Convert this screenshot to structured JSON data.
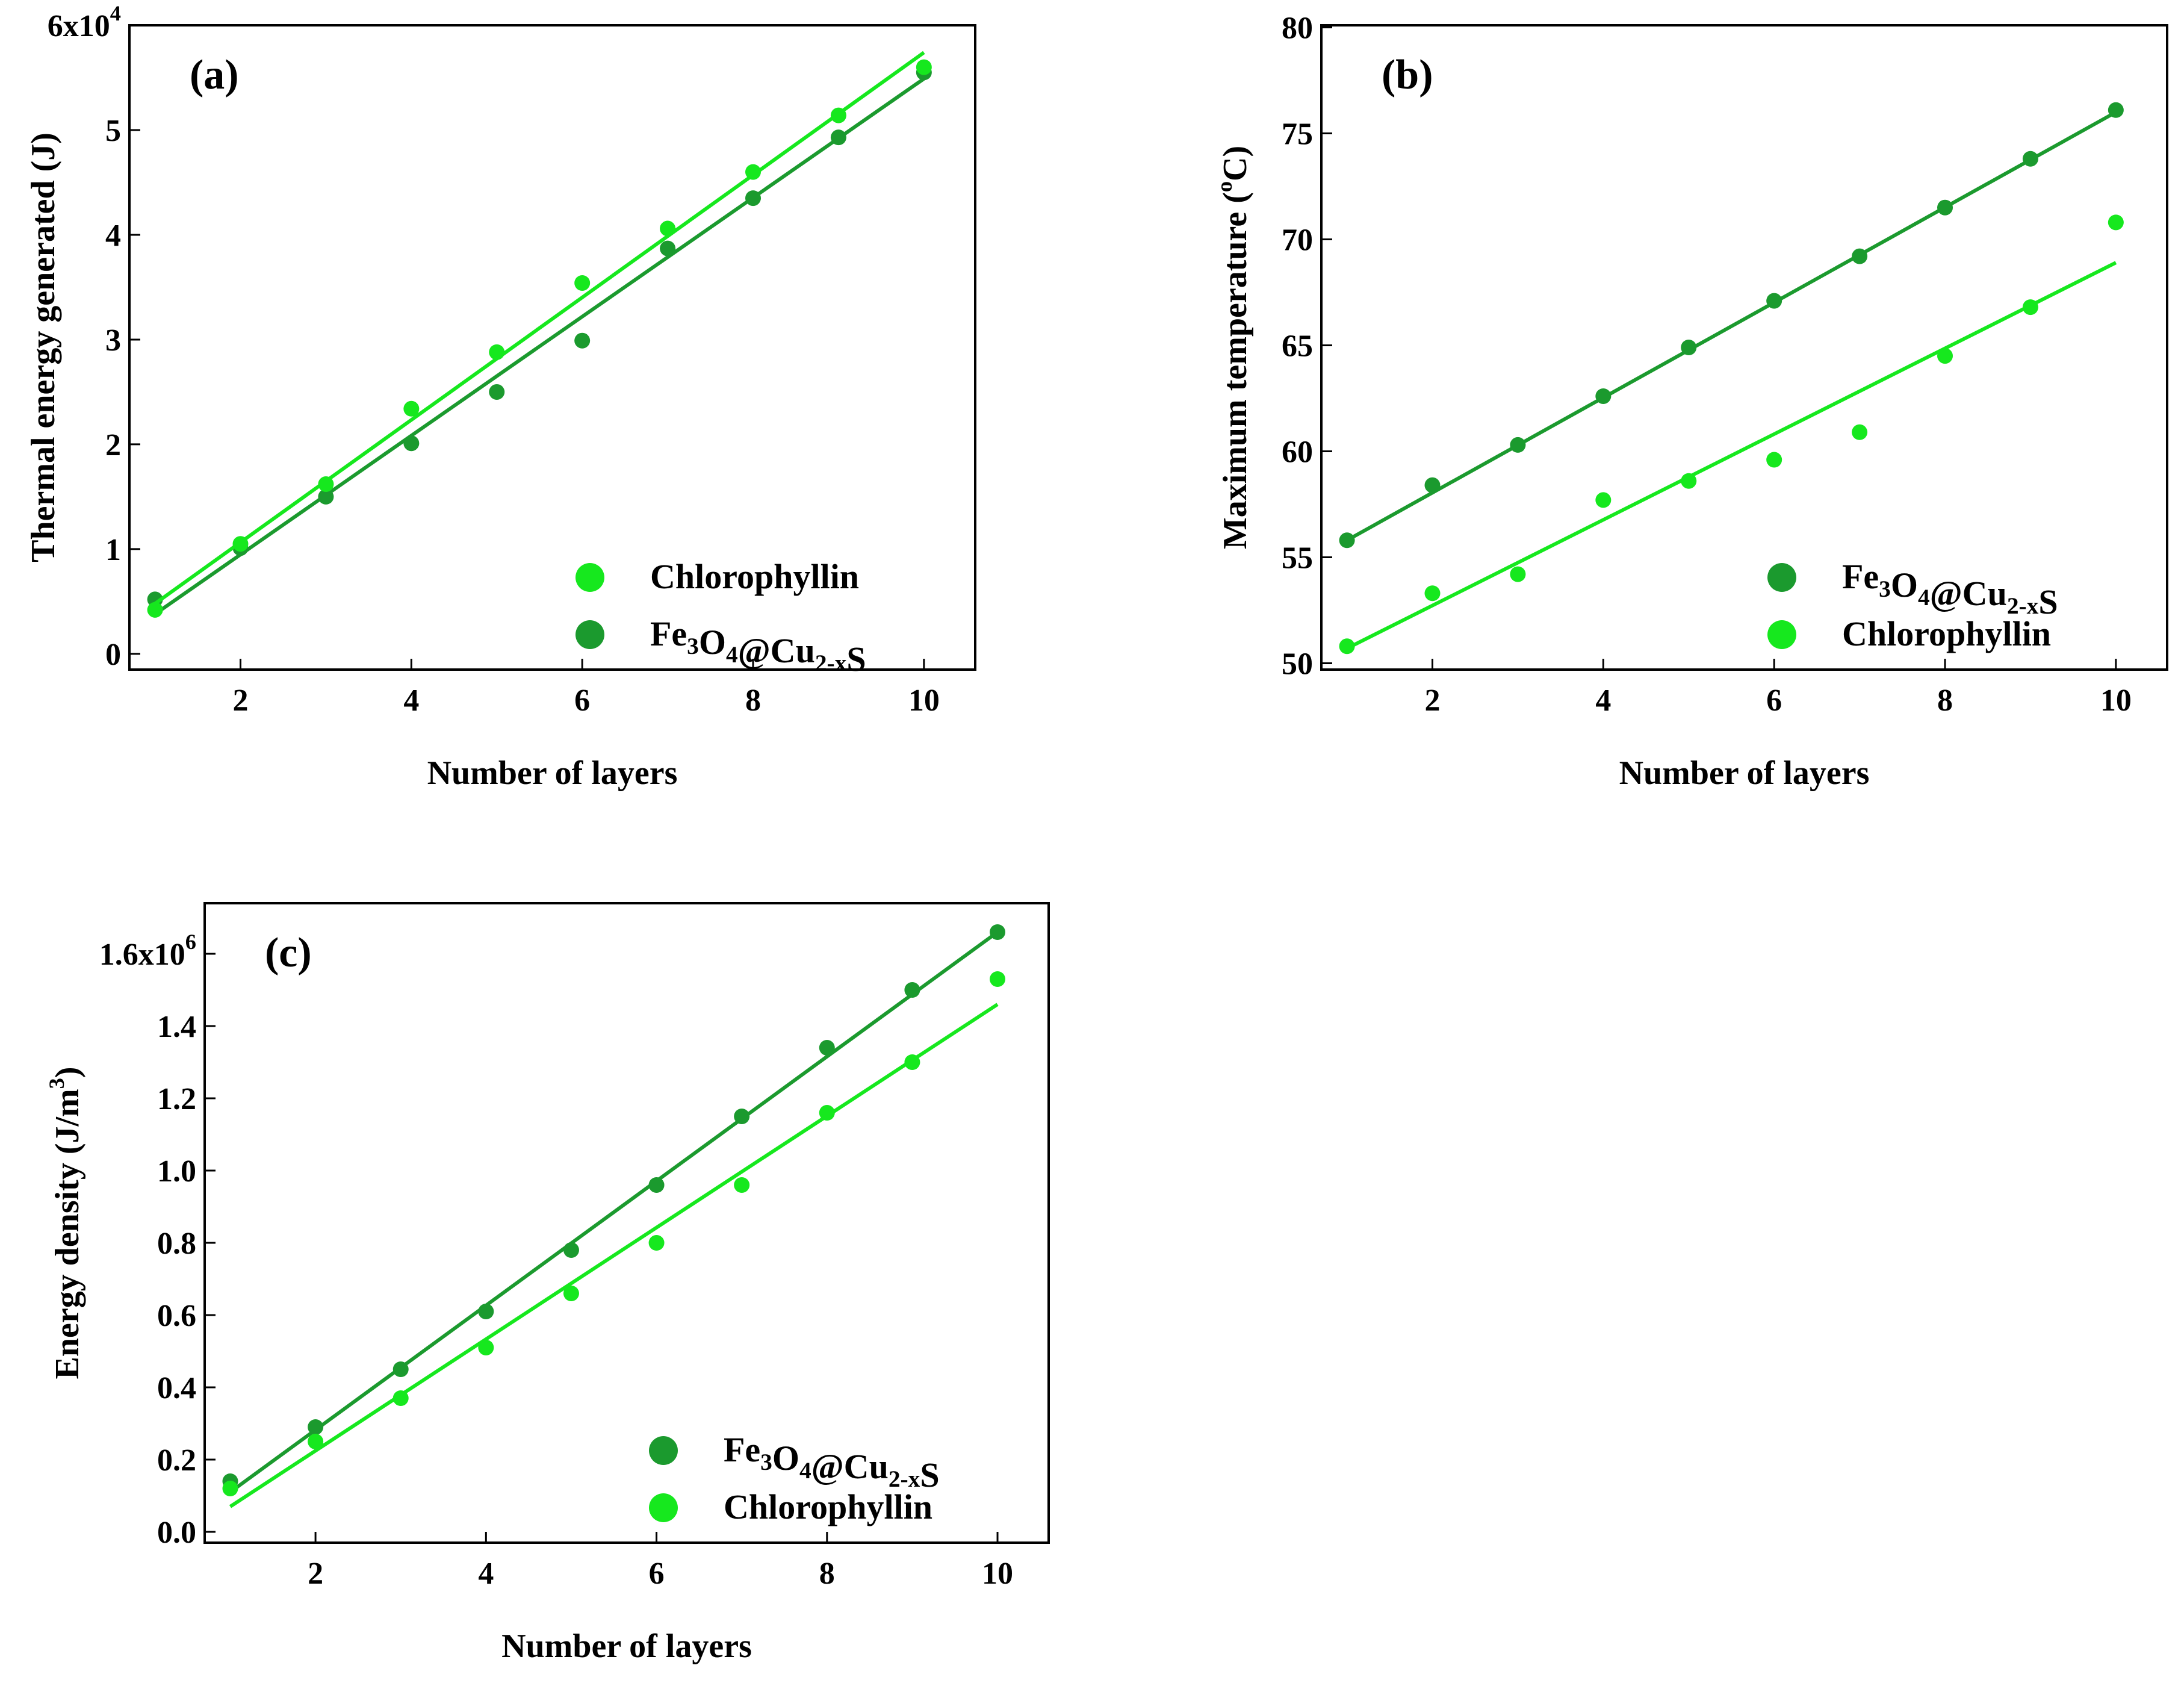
{
  "colors": {
    "dark_green": "#1b9a2e",
    "light_green": "#16e81e",
    "axis": "#000000",
    "background": "#ffffff"
  },
  "chart_data": [
    {
      "id": "a",
      "type": "scatter",
      "panel_label": "(a)",
      "xlabel": "Number of layers",
      "ylabel": "Thermal energy generated (J)",
      "y_multiplier": {
        "base": "6x10",
        "exponent": "4"
      },
      "xlim": [
        0.7,
        10.6
      ],
      "ylim": [
        -0.15,
        6.0
      ],
      "xticks": [
        {
          "value": 2,
          "label": "2"
        },
        {
          "value": 4,
          "label": "4"
        },
        {
          "value": 6,
          "label": "6"
        },
        {
          "value": 8,
          "label": "8"
        },
        {
          "value": 10,
          "label": "10"
        }
      ],
      "yticks": [
        {
          "value": 0,
          "label": "0"
        },
        {
          "value": 1,
          "label": "1"
        },
        {
          "value": 2,
          "label": "2"
        },
        {
          "value": 3,
          "label": "3"
        },
        {
          "value": 4,
          "label": "4"
        },
        {
          "value": 5,
          "label": "5"
        }
      ],
      "legend": {
        "position": "bottom-right",
        "entries": [
          {
            "series": "Chlorophyllin",
            "label": "Chlorophyllin"
          },
          {
            "series": "Fe3O4@Cu2-xS",
            "label": "Fe3O4@Cu2-xS",
            "rich": [
              {
                "t": "Fe"
              },
              {
                "t": "3",
                "sub": true
              },
              {
                "t": "O"
              },
              {
                "t": "4",
                "sub": true
              },
              {
                "t": "@Cu"
              },
              {
                "t": "2-x",
                "sub": true
              },
              {
                "t": "S"
              }
            ]
          }
        ]
      },
      "series": [
        {
          "name": "Fe3O4@Cu2-xS",
          "color": "#1b9a2e",
          "x": [
            1,
            2,
            3,
            4,
            5,
            6,
            7,
            8,
            9,
            10
          ],
          "values": [
            0.52,
            1.01,
            1.5,
            2.01,
            2.5,
            2.99,
            3.87,
            4.35,
            4.93,
            5.55
          ],
          "fit": [
            0.38,
            5.49
          ]
        },
        {
          "name": "Chlorophyllin",
          "color": "#16e81e",
          "x": [
            1,
            2,
            3,
            4,
            5,
            6,
            7,
            8,
            9,
            10
          ],
          "values": [
            0.42,
            1.05,
            1.62,
            2.34,
            2.88,
            3.54,
            4.06,
            4.6,
            5.14,
            5.6
          ],
          "fit": [
            0.48,
            5.74
          ]
        }
      ]
    },
    {
      "id": "b",
      "type": "scatter",
      "panel_label": "(b)",
      "xlabel": "Number of layers",
      "ylabel": "Maximum temperature (°C)",
      "ylabel_parts": {
        "before": "Maximum temperature (",
        "sup": "o",
        "after": "C)"
      },
      "xlim": [
        0.7,
        10.6
      ],
      "ylim": [
        49.7,
        80.1
      ],
      "xticks": [
        {
          "value": 2,
          "label": "2"
        },
        {
          "value": 4,
          "label": "4"
        },
        {
          "value": 6,
          "label": "6"
        },
        {
          "value": 8,
          "label": "8"
        },
        {
          "value": 10,
          "label": "10"
        }
      ],
      "yticks": [
        {
          "value": 50,
          "label": "50"
        },
        {
          "value": 55,
          "label": "55"
        },
        {
          "value": 60,
          "label": "60"
        },
        {
          "value": 65,
          "label": "65"
        },
        {
          "value": 70,
          "label": "70"
        },
        {
          "value": 75,
          "label": "75"
        },
        {
          "value": 80,
          "label": "80"
        }
      ],
      "legend": {
        "position": "bottom-right",
        "entries": [
          {
            "series": "Fe3O4@Cu2-xS",
            "label": "Fe3O4@Cu2-xS",
            "rich": [
              {
                "t": "Fe"
              },
              {
                "t": "3",
                "sub": true
              },
              {
                "t": "O"
              },
              {
                "t": "4",
                "sub": true
              },
              {
                "t": "@Cu"
              },
              {
                "t": "2-x",
                "sub": true
              },
              {
                "t": "S"
              }
            ]
          },
          {
            "series": "Chlorophyllin",
            "label": "Chlorophyllin"
          }
        ]
      },
      "series": [
        {
          "name": "Fe3O4@Cu2-xS",
          "color": "#1b9a2e",
          "x": [
            1,
            2,
            3,
            4,
            5,
            6,
            7,
            8,
            9,
            10
          ],
          "values": [
            55.8,
            58.4,
            60.3,
            62.6,
            64.9,
            67.1,
            69.2,
            71.5,
            73.8,
            76.1
          ],
          "fit": [
            55.8,
            76.0
          ]
        },
        {
          "name": "Chlorophyllin",
          "color": "#16e81e",
          "x": [
            1,
            2,
            3,
            4,
            5,
            6,
            7,
            8,
            9,
            10
          ],
          "values": [
            50.8,
            53.3,
            54.2,
            57.7,
            58.6,
            59.6,
            60.9,
            64.5,
            66.8,
            70.8
          ],
          "fit": [
            50.7,
            68.9
          ]
        }
      ]
    },
    {
      "id": "c",
      "type": "scatter",
      "panel_label": "(c)",
      "xlabel": "Number of layers",
      "ylabel": "Energy density (J/m3)",
      "ylabel_parts": {
        "before": "Energy density (J/m",
        "sup": "3",
        "after": ")"
      },
      "y_multiplier": {
        "base": "1.6x10",
        "exponent": "6"
      },
      "xlim": [
        0.7,
        10.6
      ],
      "ylim": [
        -0.03,
        1.74
      ],
      "xticks": [
        {
          "value": 2,
          "label": "2"
        },
        {
          "value": 4,
          "label": "4"
        },
        {
          "value": 6,
          "label": "6"
        },
        {
          "value": 8,
          "label": "8"
        },
        {
          "value": 10,
          "label": "10"
        }
      ],
      "yticks": [
        {
          "value": 0.0,
          "label": "0.0"
        },
        {
          "value": 0.2,
          "label": "0.2"
        },
        {
          "value": 0.4,
          "label": "0.4"
        },
        {
          "value": 0.6,
          "label": "0.6"
        },
        {
          "value": 0.8,
          "label": "0.8"
        },
        {
          "value": 1.0,
          "label": "1.0"
        },
        {
          "value": 1.2,
          "label": "1.2"
        },
        {
          "value": 1.4,
          "label": "1.4"
        }
      ],
      "legend": {
        "position": "bottom-right",
        "entries": [
          {
            "series": "Fe3O4@Cu2-xS",
            "label": "Fe3O4@Cu2-xS",
            "rich": [
              {
                "t": "Fe"
              },
              {
                "t": "3",
                "sub": true
              },
              {
                "t": "O"
              },
              {
                "t": "4",
                "sub": true
              },
              {
                "t": "@Cu"
              },
              {
                "t": "2-x",
                "sub": true
              },
              {
                "t": "S"
              }
            ]
          },
          {
            "series": "Chlorophyllin",
            "label": "Chlorophyllin"
          }
        ]
      },
      "series": [
        {
          "name": "Fe3O4@Cu2-xS",
          "color": "#1b9a2e",
          "x": [
            1,
            2,
            3,
            4,
            5,
            6,
            7,
            8,
            9,
            10
          ],
          "values": [
            0.14,
            0.29,
            0.45,
            0.61,
            0.78,
            0.96,
            1.15,
            1.34,
            1.5,
            1.66
          ],
          "fit": [
            0.11,
            1.66
          ]
        },
        {
          "name": "Chlorophyllin",
          "color": "#16e81e",
          "x": [
            1,
            2,
            3,
            4,
            5,
            6,
            7,
            8,
            9,
            10
          ],
          "values": [
            0.12,
            0.25,
            0.37,
            0.51,
            0.66,
            0.8,
            0.96,
            1.16,
            1.3,
            1.53
          ],
          "fit": [
            0.07,
            1.46
          ]
        }
      ]
    }
  ]
}
